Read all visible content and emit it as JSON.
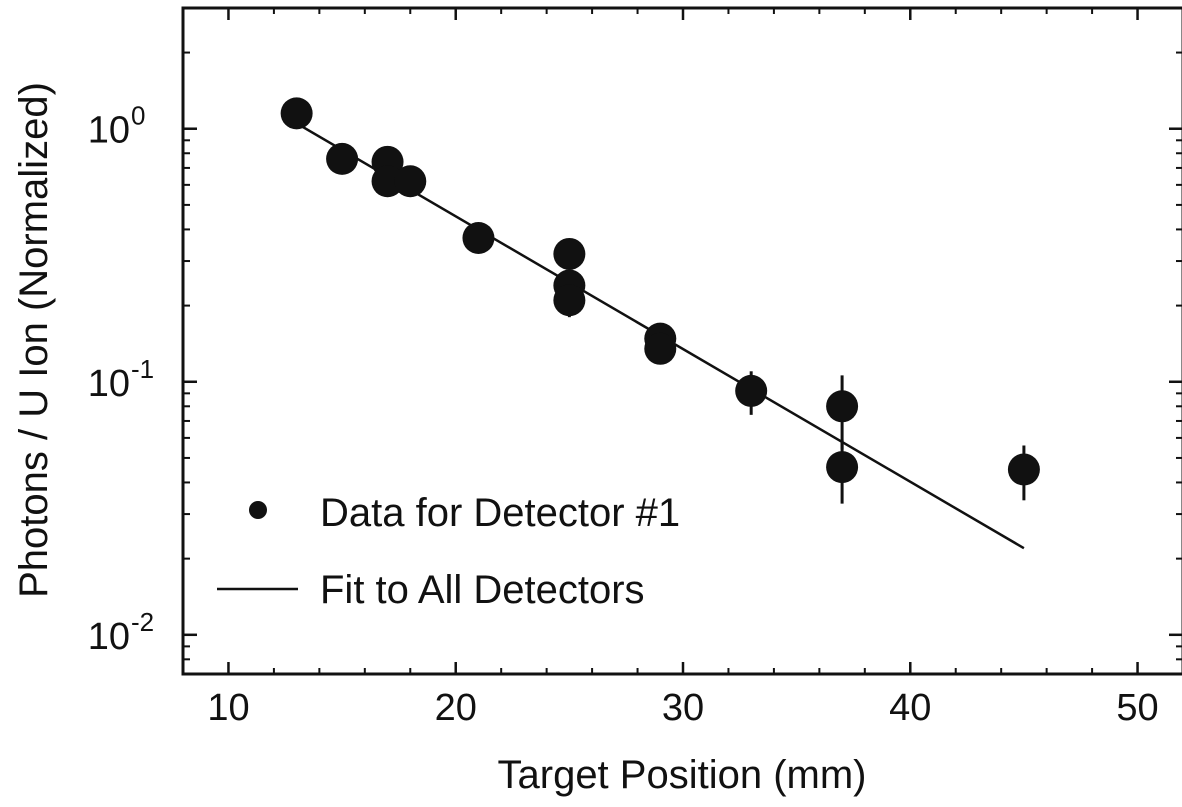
{
  "chart_data": {
    "type": "scatter",
    "title": "",
    "xlabel": "Target Position  (mm)",
    "ylabel": "Photons / U Ion  (Normalized)",
    "xlim": [
      8,
      52
    ],
    "ylim": [
      0.007,
      3.0
    ],
    "x_scale": "linear",
    "y_scale": "log",
    "x_ticks": [
      10,
      20,
      30,
      40,
      50
    ],
    "y_ticks": [
      {
        "value": 1,
        "base": "10",
        "exp": "0"
      },
      {
        "value": 0.1,
        "base": "10",
        "exp": "-1"
      },
      {
        "value": 0.01,
        "base": "10",
        "exp": "-2"
      }
    ],
    "grid": false,
    "legend_position": "bottom-left",
    "series": [
      {
        "name": "Data for Detector #1",
        "kind": "points",
        "color": "#111111",
        "points": [
          {
            "x": 13,
            "y": 1.15,
            "err": 0.06
          },
          {
            "x": 15,
            "y": 0.76,
            "err": 0.05
          },
          {
            "x": 17,
            "y": 0.74,
            "err": 0.05
          },
          {
            "x": 17,
            "y": 0.62,
            "err": 0.04
          },
          {
            "x": 18,
            "y": 0.62,
            "err": 0.04
          },
          {
            "x": 21,
            "y": 0.37,
            "err": 0.03
          },
          {
            "x": 25,
            "y": 0.32,
            "err": 0.03
          },
          {
            "x": 25,
            "y": 0.24,
            "err": 0.03
          },
          {
            "x": 25,
            "y": 0.21,
            "err": 0.03
          },
          {
            "x": 29,
            "y": 0.148,
            "err": 0.015
          },
          {
            "x": 29,
            "y": 0.135,
            "err": 0.015
          },
          {
            "x": 33,
            "y": 0.092,
            "err": 0.018
          },
          {
            "x": 37,
            "y": 0.08,
            "err": 0.026
          },
          {
            "x": 37,
            "y": 0.046,
            "err": 0.013
          },
          {
            "x": 45,
            "y": 0.045,
            "err": 0.011
          }
        ]
      },
      {
        "name": "Fit to All Detectors",
        "kind": "line",
        "color": "#111111",
        "points": [
          {
            "x": 13,
            "y": 1.05
          },
          {
            "x": 45,
            "y": 0.022
          }
        ]
      }
    ]
  }
}
